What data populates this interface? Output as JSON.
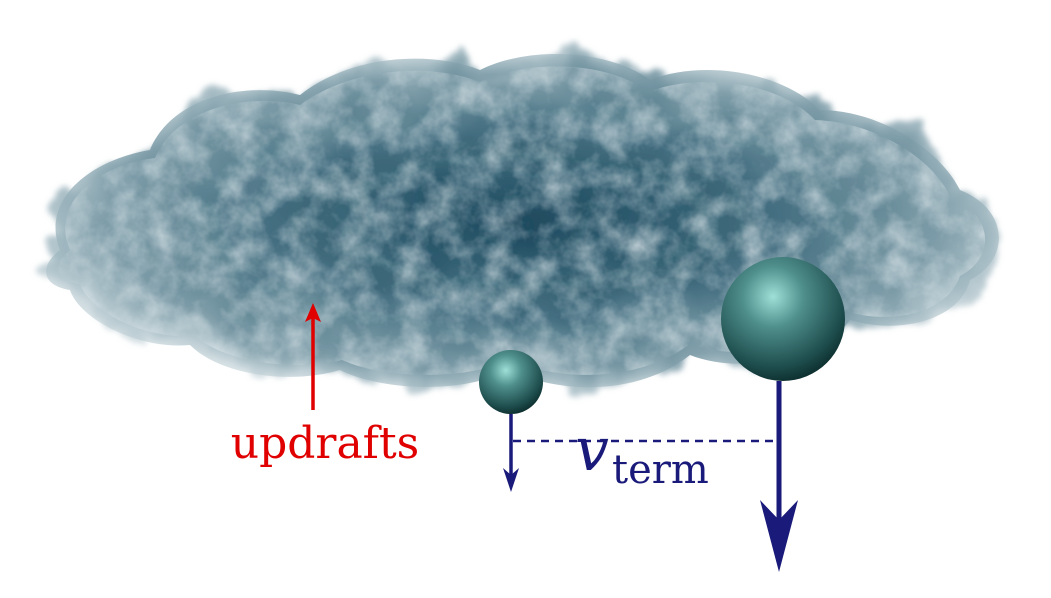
{
  "labels": {
    "updrafts": "updrafts",
    "velocity_symbol": "v",
    "velocity_subscript": "term"
  },
  "colors": {
    "updraft_arrow": "#e00000",
    "velocity_arrow": "#1a1a7a",
    "cloud_dark": "#1f4a5e",
    "cloud_mid": "#5d8292",
    "cloud_light": "#b9ccd3",
    "droplet_highlight": "#8fd6cf",
    "droplet_dark": "#0f3b3b"
  }
}
